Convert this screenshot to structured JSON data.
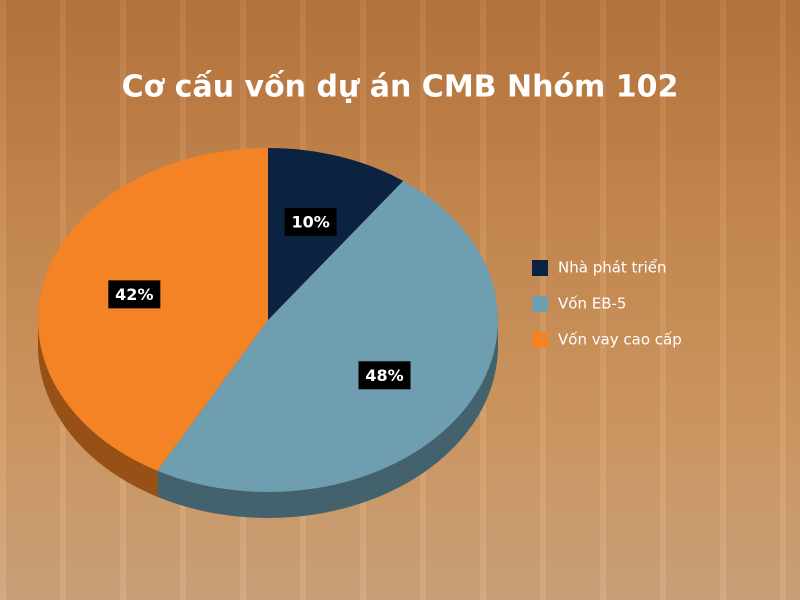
{
  "chart_data": {
    "type": "pie",
    "title": "Cơ cấu vốn dự án CMB Nhóm 102",
    "categories": [
      "Nhà phát triển",
      "Vốn EB-5",
      "Vốn vay cao cấp"
    ],
    "values": [
      10,
      48,
      42
    ],
    "value_labels": [
      "10%",
      "48%",
      "42%"
    ],
    "colors": [
      "#0c2241",
      "#6e9eaf",
      "#f38324"
    ],
    "legend": "right"
  }
}
